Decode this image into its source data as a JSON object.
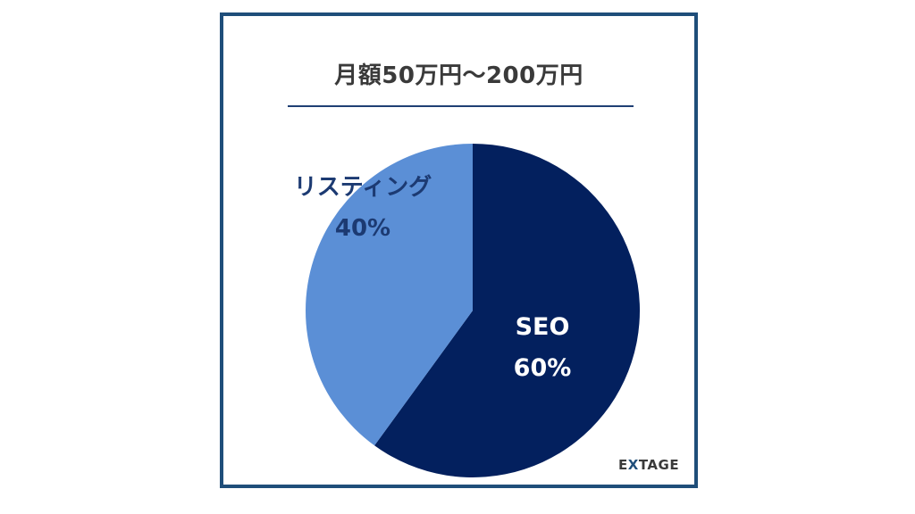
{
  "chart_data": {
    "type": "pie",
    "title": "月額50万円～200万円",
    "slices": [
      {
        "label": "SEO",
        "value": 60,
        "value_label": "60%",
        "color": "#03205e",
        "text_color": "#ffffff"
      },
      {
        "label": "リスティング",
        "value": 40,
        "value_label": "40%",
        "color": "#5b8fd6",
        "text_color": "#1c3a72"
      }
    ]
  },
  "logo": {
    "text_prefix": "E",
    "text_x": "X",
    "text_rest": "TAGE"
  }
}
